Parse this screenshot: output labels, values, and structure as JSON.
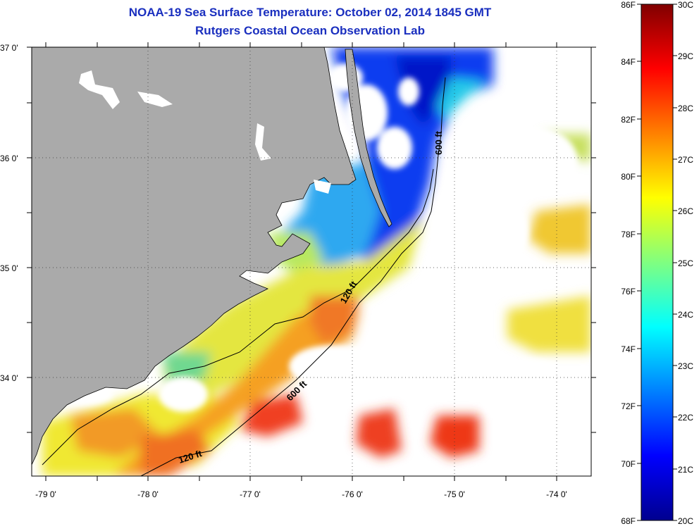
{
  "header": {
    "title": "NOAA-19 Sea Surface Temperature:  October 02, 2014 1845 GMT",
    "subtitle": "Rutgers Coastal Ocean Observation Lab"
  },
  "map": {
    "latitude_labels": [
      "37 0'",
      "36 0'",
      "35 0'",
      "34 0'"
    ],
    "longitude_labels": [
      "-79 0'",
      "-78 0'",
      "-77 0'",
      "-76 0'",
      "-75 0'",
      "-74 0'"
    ],
    "contour_labels": [
      {
        "id": "c600-north",
        "text": "600 ft"
      },
      {
        "id": "c120-mid",
        "text": "120 ft"
      },
      {
        "id": "c600-south",
        "text": "600 ft"
      },
      {
        "id": "c120-south",
        "text": "120 ft"
      }
    ],
    "colors": {
      "land": "#aaaaaa",
      "no_data": "#ffffff",
      "frame": "#000000"
    }
  },
  "colorbar": {
    "fahrenheit_labels": [
      "86F",
      "84F",
      "82F",
      "80F",
      "78F",
      "76F",
      "74F",
      "72F",
      "70F",
      "68F"
    ],
    "celsius_labels": [
      "30C",
      "29C",
      "28C",
      "27C",
      "26C",
      "25C",
      "24C",
      "23C",
      "22C",
      "21C",
      "20C"
    ],
    "colors": [
      "#00008f",
      "#0000ff",
      "#0080ff",
      "#00ffff",
      "#80ff80",
      "#ffff00",
      "#ff8000",
      "#ff0000",
      "#800000"
    ]
  }
}
